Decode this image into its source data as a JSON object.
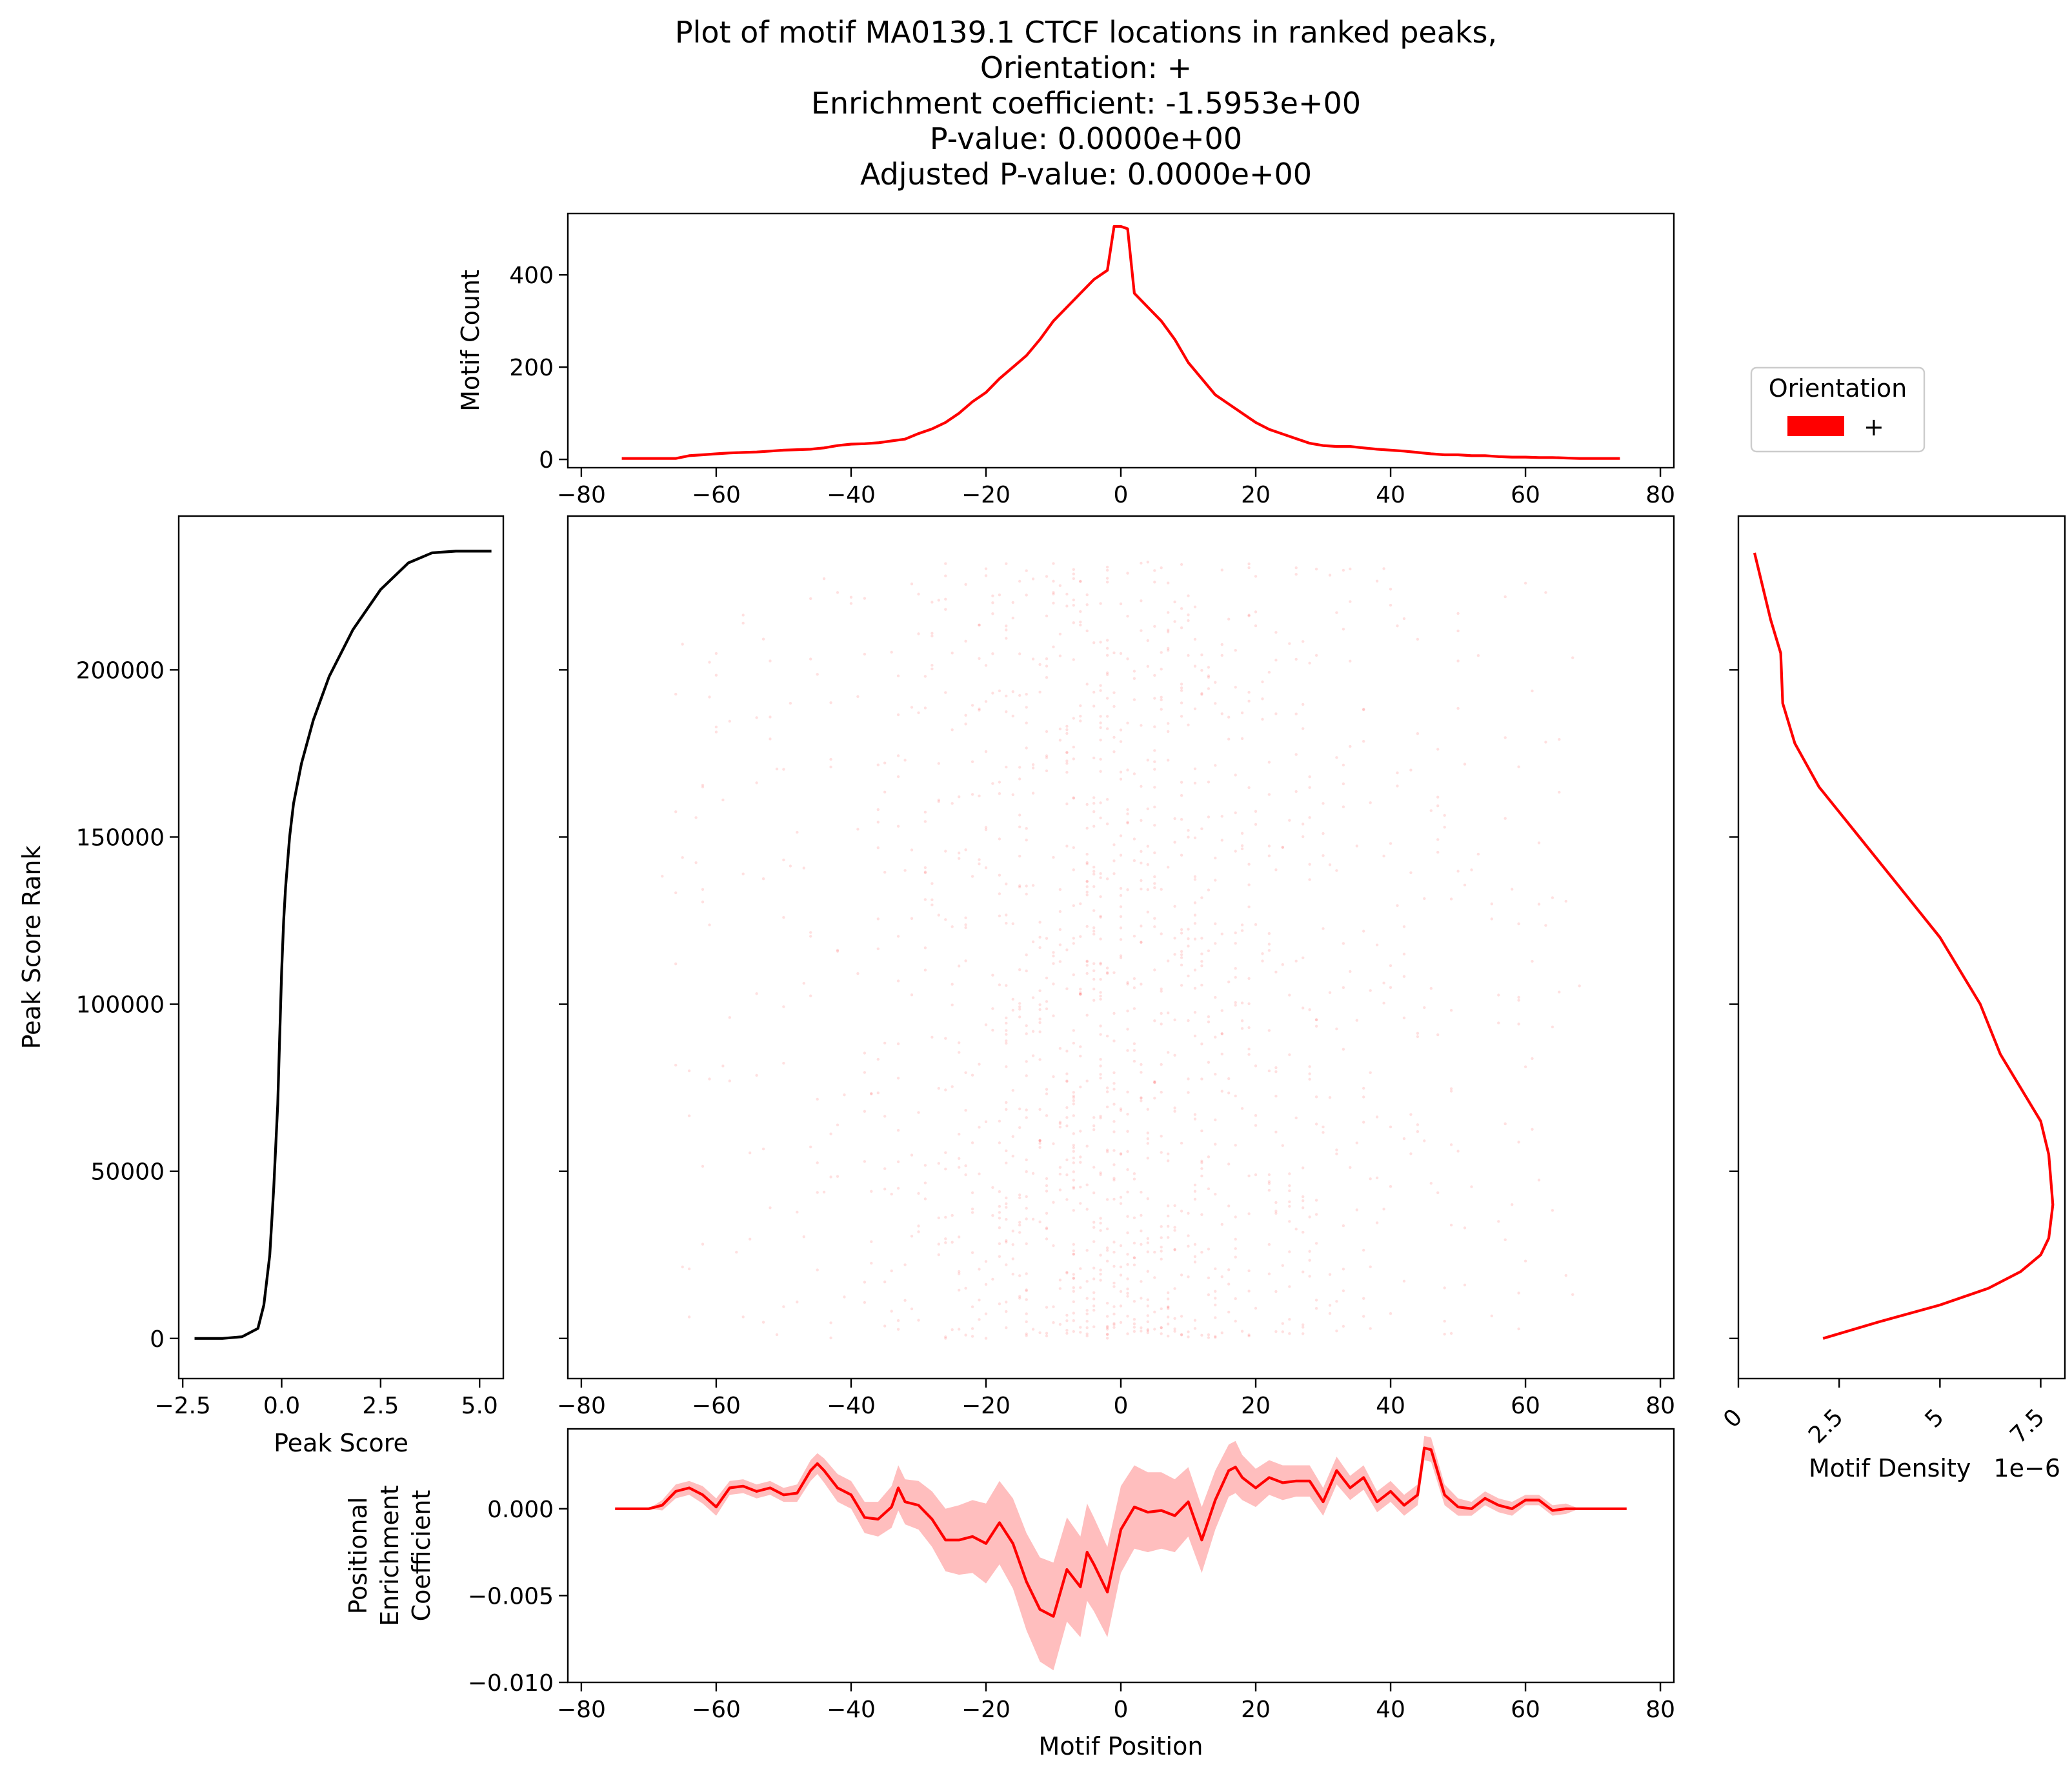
{
  "title_lines": [
    "Plot of motif MA0139.1 CTCF locations in ranked peaks,",
    "Orientation: +",
    "Enrichment coefficient: -1.5953e+00",
    "P-value: 0.0000e+00",
    "Adjusted P-value: 0.0000e+00"
  ],
  "colors": {
    "series": "#ff0000",
    "band": "#ffb3b3",
    "peak_score": "#000000"
  },
  "legend": {
    "title": "Orientation",
    "entries": [
      "+"
    ]
  },
  "chart_data": [
    {
      "panel": "motif_count",
      "type": "line",
      "ylabel": "Motif Count",
      "xlim": [
        -82,
        82
      ],
      "ylim": [
        -18,
        533
      ],
      "xticks": [
        -80,
        -60,
        -40,
        -20,
        0,
        20,
        40,
        60,
        80
      ],
      "yticks": [
        0,
        200,
        400
      ],
      "x": [
        -74,
        -70,
        -66,
        -64,
        -62,
        -60,
        -58,
        -56,
        -54,
        -52,
        -50,
        -48,
        -46,
        -44,
        -42,
        -40,
        -38,
        -36,
        -34,
        -32,
        -30,
        -28,
        -26,
        -24,
        -22,
        -20,
        -18,
        -16,
        -14,
        -12,
        -10,
        -8,
        -6,
        -4,
        -2,
        -1,
        0,
        1,
        2,
        4,
        6,
        8,
        10,
        12,
        14,
        16,
        18,
        20,
        22,
        24,
        26,
        28,
        30,
        32,
        34,
        36,
        38,
        40,
        42,
        44,
        46,
        48,
        50,
        52,
        54,
        56,
        58,
        60,
        62,
        64,
        66,
        68,
        74
      ],
      "y": [
        2,
        2,
        2,
        8,
        10,
        12,
        14,
        15,
        16,
        18,
        20,
        21,
        22,
        25,
        30,
        33,
        34,
        36,
        40,
        44,
        56,
        66,
        80,
        100,
        125,
        145,
        175,
        200,
        225,
        260,
        300,
        330,
        360,
        390,
        410,
        505,
        505,
        500,
        360,
        330,
        300,
        260,
        210,
        175,
        140,
        120,
        100,
        80,
        65,
        55,
        45,
        35,
        30,
        28,
        28,
        25,
        22,
        20,
        18,
        15,
        12,
        10,
        10,
        8,
        8,
        6,
        5,
        5,
        4,
        4,
        3,
        2,
        2
      ],
      "series": [
        {
          "name": "",
          "color": "#ff0000"
        }
      ]
    },
    {
      "panel": "peak_score",
      "type": "line",
      "xlabel": "Peak Score",
      "ylabel": "Peak Score Rank",
      "xlim": [
        -2.6,
        5.6
      ],
      "ylim": [
        -12000,
        246000
      ],
      "xticks": [
        -2.5,
        0.0,
        2.5,
        5.0
      ],
      "xtick_labels": [
        "−2.5",
        "0.0",
        "2.5",
        "5.0"
      ],
      "yticks": [
        0,
        50000,
        100000,
        150000,
        200000
      ],
      "x": [
        -2.2,
        -1.5,
        -1.0,
        -0.6,
        -0.45,
        -0.3,
        -0.2,
        -0.1,
        -0.05,
        0.0,
        0.05,
        0.1,
        0.2,
        0.3,
        0.5,
        0.8,
        1.2,
        1.8,
        2.5,
        3.2,
        3.8,
        4.4,
        5.3
      ],
      "y": [
        0,
        0,
        500,
        3000,
        10000,
        25000,
        45000,
        70000,
        90000,
        110000,
        125000,
        135000,
        150000,
        160000,
        172000,
        185000,
        198000,
        212000,
        224000,
        232000,
        235000,
        235500,
        235500
      ],
      "series": [
        {
          "name": "",
          "color": "#000000"
        }
      ]
    },
    {
      "panel": "motif_locations",
      "type": "scatter",
      "xlim": [
        -82,
        82
      ],
      "ylim": [
        -12000,
        246000
      ],
      "xticks": [
        -80,
        -60,
        -40,
        -20,
        0,
        20,
        40,
        60,
        80
      ],
      "yticks": [
        0,
        50000,
        100000,
        150000,
        200000
      ],
      "density_profile": {
        "x": [
          -80,
          -60,
          -40,
          -30,
          -20,
          -10,
          -5,
          0,
          5,
          10,
          20,
          30,
          40,
          60,
          80
        ],
        "weight": [
          0.04,
          0.08,
          0.18,
          0.3,
          0.5,
          0.8,
          0.9,
          1.0,
          0.9,
          0.75,
          0.45,
          0.28,
          0.17,
          0.08,
          0.04
        ]
      },
      "series": [
        {
          "name": "+",
          "color": "#ff0000"
        }
      ]
    },
    {
      "panel": "motif_density",
      "type": "line",
      "xlabel": "Motif Density",
      "offset_label": "1e−6",
      "xlim": [
        0,
        8.1
      ],
      "ylim": [
        -12000,
        246000
      ],
      "xticks": [
        0.0,
        2.5,
        5.0,
        7.5
      ],
      "yticks": [
        0,
        50000,
        100000,
        150000,
        200000
      ],
      "x": [
        2.1,
        3.5,
        5.0,
        6.2,
        7.0,
        7.5,
        7.7,
        7.8,
        7.7,
        7.5,
        7.0,
        6.5,
        6.0,
        5.0,
        4.0,
        3.0,
        2.0,
        1.4,
        1.1,
        1.05,
        0.8,
        0.6,
        0.4
      ],
      "y": [
        0,
        5000,
        10000,
        15000,
        20000,
        25000,
        30000,
        40000,
        55000,
        65000,
        75000,
        85000,
        100000,
        120000,
        135000,
        150000,
        165000,
        178000,
        190000,
        205000,
        215000,
        225000,
        235000
      ],
      "series": [
        {
          "name": "",
          "color": "#ff0000"
        }
      ]
    },
    {
      "panel": "positional_enrichment",
      "type": "area",
      "xlabel": "Motif Position",
      "ylabel_lines": [
        "Positional",
        "Enrichment",
        "Coefficient"
      ],
      "xlim": [
        -82,
        82
      ],
      "ylim": [
        -0.01,
        0.0046
      ],
      "xticks": [
        -80,
        -60,
        -40,
        -20,
        0,
        20,
        40,
        60,
        80
      ],
      "yticks": [
        -0.01,
        -0.005,
        0.0
      ],
      "ytick_labels": [
        "−0.010",
        "−0.005",
        "0.000"
      ],
      "x": [
        -75,
        -70,
        -68,
        -66,
        -64,
        -62,
        -60,
        -58,
        -56,
        -54,
        -52,
        -50,
        -48,
        -46,
        -45,
        -44,
        -42,
        -40,
        -38,
        -36,
        -34,
        -33,
        -32,
        -30,
        -28,
        -26,
        -24,
        -22,
        -20,
        -18,
        -16,
        -14,
        -12,
        -10,
        -8,
        -6,
        -5,
        -4,
        -2,
        0,
        2,
        4,
        6,
        8,
        10,
        12,
        14,
        16,
        17,
        18,
        20,
        22,
        24,
        26,
        28,
        30,
        32,
        34,
        36,
        38,
        40,
        42,
        44,
        45,
        46,
        48,
        50,
        52,
        54,
        56,
        58,
        60,
        62,
        64,
        66,
        68,
        75
      ],
      "y": [
        0,
        0,
        0.0002,
        0.001,
        0.0012,
        0.0008,
        0.0001,
        0.0012,
        0.0013,
        0.001,
        0.0012,
        0.0008,
        0.0009,
        0.0022,
        0.0026,
        0.0022,
        0.0012,
        0.0008,
        -0.0005,
        -0.0006,
        0.0001,
        0.0012,
        0.0004,
        0.0002,
        -0.0006,
        -0.0018,
        -0.0018,
        -0.0016,
        -0.002,
        -0.0008,
        -0.002,
        -0.0042,
        -0.0058,
        -0.0062,
        -0.0035,
        -0.0045,
        -0.0025,
        -0.0032,
        -0.0048,
        -0.0012,
        0.0001,
        -0.0002,
        -0.0001,
        -0.0004,
        0.0004,
        -0.0018,
        0.0005,
        0.0022,
        0.0024,
        0.0018,
        0.0012,
        0.0018,
        0.0015,
        0.0016,
        0.0016,
        0.0004,
        0.0022,
        0.0012,
        0.0018,
        0.0004,
        0.001,
        0.0002,
        0.0008,
        0.0035,
        0.0034,
        0.0008,
        0.0001,
        0.0,
        0.0006,
        0.0002,
        0.0,
        0.0005,
        0.0005,
        -0.0001,
        0.0,
        0.0,
        0.0
      ],
      "band": [
        0,
        0,
        0.0003,
        0.0004,
        0.0004,
        0.0005,
        0.0005,
        0.0004,
        0.0004,
        0.0004,
        0.0004,
        0.0004,
        0.0005,
        0.0006,
        0.0006,
        0.0007,
        0.0008,
        0.0008,
        0.0009,
        0.001,
        0.0012,
        0.0013,
        0.0013,
        0.0014,
        0.0016,
        0.0018,
        0.002,
        0.0021,
        0.0023,
        0.0024,
        0.0026,
        0.0028,
        0.003,
        0.0031,
        0.003,
        0.0029,
        0.0028,
        0.0027,
        0.0026,
        0.0025,
        0.0024,
        0.0023,
        0.0022,
        0.0021,
        0.002,
        0.0019,
        0.0017,
        0.0015,
        0.0015,
        0.0013,
        0.0011,
        0.001,
        0.001,
        0.0009,
        0.0009,
        0.0008,
        0.0008,
        0.0007,
        0.0007,
        0.0006,
        0.0006,
        0.0006,
        0.0006,
        0.0007,
        0.0007,
        0.0006,
        0.0005,
        0.0004,
        0.0004,
        0.0004,
        0.0004,
        0.0003,
        0.0003,
        0.0003,
        0.0003,
        0,
        0
      ],
      "series": [
        {
          "name": "",
          "color": "#ff0000"
        }
      ]
    }
  ]
}
